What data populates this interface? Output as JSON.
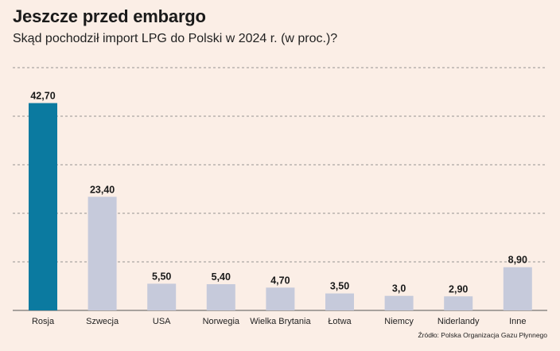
{
  "chart_data": {
    "type": "bar",
    "title": "Jeszcze przed embargo",
    "subtitle": "Skąd pochodził import LPG do Polski w 2024 r. (w proc.)?",
    "categories": [
      "Rosja",
      "Szwecja",
      "USA",
      "Norwegia",
      "Wielka Brytania",
      "Łotwa",
      "Niemcy",
      "Niderlandy",
      "Inne"
    ],
    "values": [
      42.7,
      23.4,
      5.5,
      5.4,
      4.7,
      3.5,
      3.0,
      2.9,
      8.9
    ],
    "value_labels": [
      "42,70",
      "23,40",
      "5,50",
      "5,40",
      "4,70",
      "3,50",
      "3,0",
      "2,90",
      "8,90"
    ],
    "ylim": [
      0,
      50
    ],
    "gridlines": [
      0,
      10,
      20,
      30,
      40,
      50
    ],
    "grid": true,
    "legend": "none",
    "highlight_color": "#0b7aa0",
    "bar_color": "#c6cadb",
    "source": "Źródło: Polska Organizacja Gazu Płynnego"
  }
}
